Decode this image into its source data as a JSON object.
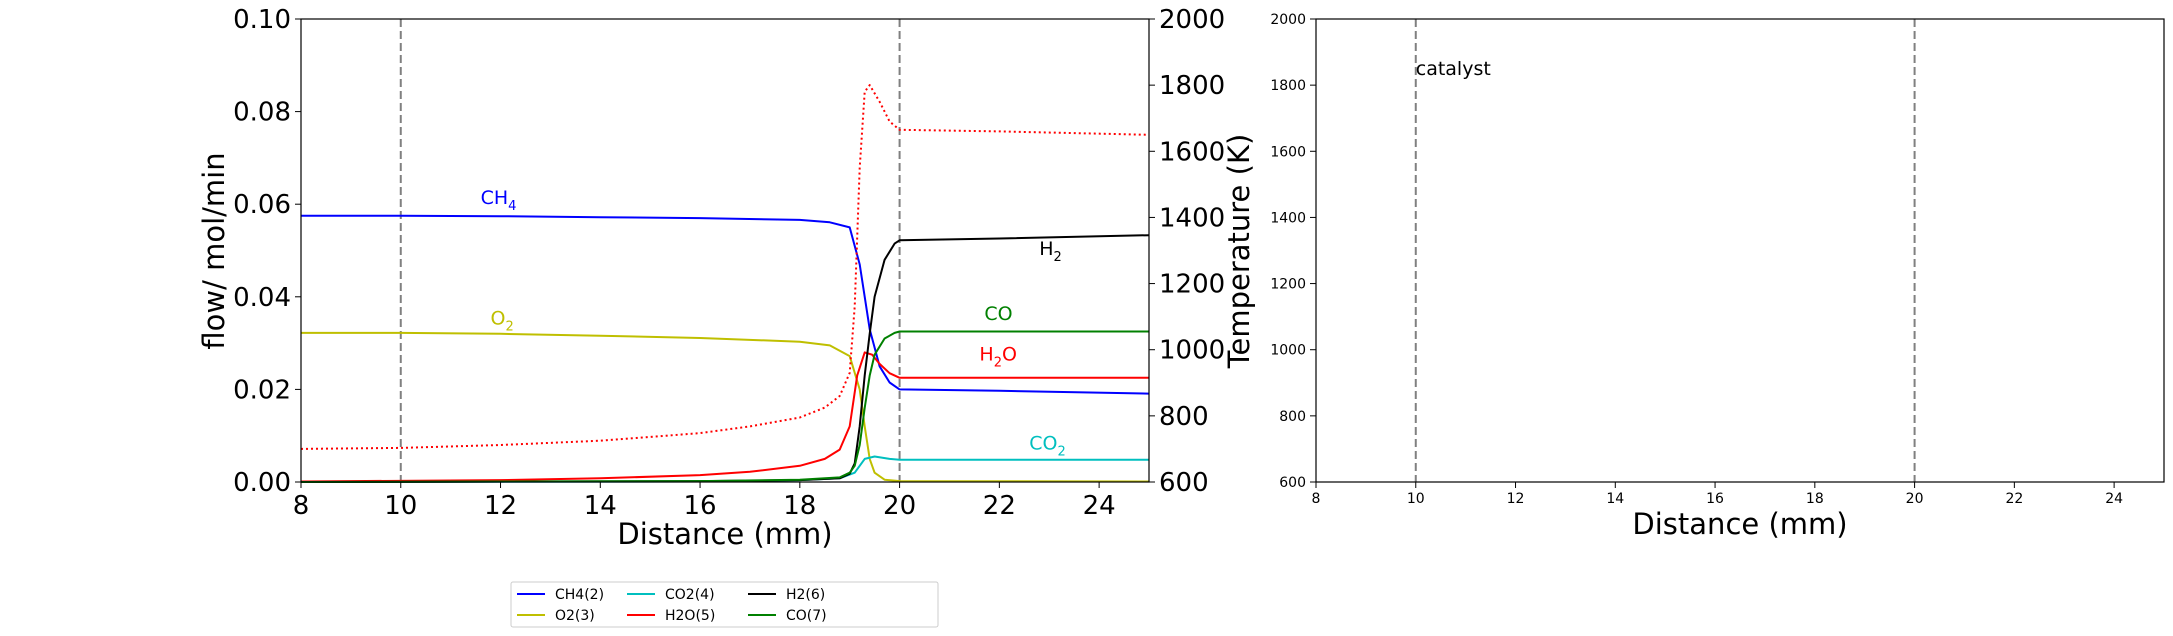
{
  "chart_data": [
    {
      "type": "line",
      "xlabel": "Distance (mm)",
      "ylabel": "flow/ mol/min",
      "y2label": "Temperature (K)",
      "xlim": [
        8,
        25
      ],
      "ylim": [
        0,
        0.1
      ],
      "y2lim": [
        600,
        2000
      ],
      "xticks": [
        "8",
        "10",
        "12",
        "14",
        "16",
        "18",
        "20",
        "22",
        "24"
      ],
      "yticks": [
        "0.00",
        "0.02",
        "0.04",
        "0.06",
        "0.08",
        "0.10"
      ],
      "y2ticks": [
        "600",
        "800",
        "1000",
        "1200",
        "1400",
        "1600",
        "1800",
        "2000"
      ],
      "vlines": [
        10,
        20
      ],
      "grid": false,
      "series": [
        {
          "name": "CH4(2)",
          "color": "#0000ff",
          "style": "solid",
          "x": [
            8,
            10,
            12,
            14,
            16,
            18,
            18.6,
            19.0,
            19.2,
            19.4,
            19.6,
            19.8,
            20,
            22,
            25
          ],
          "y": [
            0.0575,
            0.0575,
            0.0574,
            0.0572,
            0.057,
            0.0566,
            0.0561,
            0.055,
            0.047,
            0.033,
            0.025,
            0.0215,
            0.02,
            0.0197,
            0.0191
          ]
        },
        {
          "name": "O2(3)",
          "color": "#bfbf00",
          "style": "solid",
          "x": [
            8,
            10,
            12,
            14,
            16,
            18,
            18.6,
            19.0,
            19.2,
            19.3,
            19.4,
            19.5,
            19.7,
            20,
            25
          ],
          "y": [
            0.0322,
            0.0322,
            0.032,
            0.0316,
            0.0311,
            0.0303,
            0.0295,
            0.0272,
            0.02,
            0.012,
            0.005,
            0.002,
            0.0005,
            0.0002,
            0.0001
          ]
        },
        {
          "name": "CO2(4)",
          "color": "#00bfbf",
          "style": "solid",
          "x": [
            8,
            16,
            18,
            18.8,
            19.1,
            19.3,
            19.5,
            19.8,
            20,
            25
          ],
          "y": [
            0,
            0.0001,
            0.0004,
            0.0008,
            0.002,
            0.005,
            0.0055,
            0.005,
            0.0048,
            0.0048
          ]
        },
        {
          "name": "H2O(5)",
          "color": "#ff0000",
          "style": "solid",
          "x": [
            8,
            12,
            14,
            16,
            17,
            18,
            18.5,
            18.8,
            19.0,
            19.15,
            19.3,
            19.45,
            19.6,
            19.8,
            20,
            25
          ],
          "y": [
            0.0001,
            0.0004,
            0.0008,
            0.0015,
            0.0022,
            0.0035,
            0.005,
            0.007,
            0.012,
            0.023,
            0.028,
            0.0275,
            0.0255,
            0.0235,
            0.0225,
            0.0225
          ]
        },
        {
          "name": "H2(6)",
          "color": "#000000",
          "style": "solid",
          "x": [
            8,
            16,
            18,
            18.8,
            19.0,
            19.1,
            19.2,
            19.3,
            19.4,
            19.5,
            19.7,
            19.9,
            20,
            22,
            25
          ],
          "y": [
            0,
            0.0002,
            0.0004,
            0.0008,
            0.0018,
            0.004,
            0.012,
            0.023,
            0.032,
            0.04,
            0.048,
            0.0515,
            0.0522,
            0.0526,
            0.0533
          ]
        },
        {
          "name": "CO(7)",
          "color": "#008000",
          "style": "solid",
          "x": [
            8,
            16,
            18,
            18.8,
            19.0,
            19.1,
            19.2,
            19.3,
            19.4,
            19.5,
            19.7,
            19.9,
            20,
            25
          ],
          "y": [
            0,
            0.0002,
            0.0005,
            0.001,
            0.002,
            0.0035,
            0.008,
            0.016,
            0.023,
            0.0275,
            0.031,
            0.0322,
            0.0325,
            0.0325
          ]
        },
        {
          "name": "",
          "color": "#ff0000",
          "style": "dotted",
          "axis": "right",
          "x": [
            8,
            10,
            12,
            14,
            16,
            17,
            18,
            18.5,
            18.8,
            19.0,
            19.1,
            19.2,
            19.3,
            19.4,
            19.6,
            19.8,
            20,
            22,
            25
          ],
          "y": [
            700,
            703,
            712,
            725,
            748,
            768,
            795,
            825,
            860,
            930,
            1130,
            1550,
            1780,
            1800,
            1750,
            1690,
            1665,
            1660,
            1650
          ]
        }
      ],
      "annotations": [
        {
          "text": "CH",
          "sub": "4",
          "x": 11.6,
          "y": 0.06,
          "color": "#0000ff"
        },
        {
          "text": "O",
          "sub": "2",
          "x": 11.8,
          "y": 0.034,
          "color": "#bfbf00"
        },
        {
          "text": "H",
          "sub": "2",
          "x": 22.8,
          "y": 0.049,
          "color": "#000000"
        },
        {
          "text": "CO",
          "sub": "",
          "x": 21.7,
          "y": 0.035,
          "color": "#008000"
        },
        {
          "text": "H",
          "sub": "2",
          "tail": "O",
          "x": 21.6,
          "y": 0.0262,
          "color": "#ff0000"
        },
        {
          "text": "CO",
          "sub": "2",
          "x": 22.6,
          "y": 0.007,
          "color": "#00bfbf"
        }
      ]
    },
    {
      "type": "line",
      "xlabel": "Distance (mm)",
      "xlim": [
        8,
        25
      ],
      "ylim": [
        600,
        2000
      ],
      "xticks": [
        "8",
        "10",
        "12",
        "14",
        "16",
        "18",
        "20",
        "22",
        "24"
      ],
      "yticks": [
        "600",
        "800",
        "1000",
        "1200",
        "1400",
        "1600",
        "1800",
        "2000"
      ],
      "vlines": [
        10,
        20
      ],
      "grid": false,
      "series": [],
      "annotations": [
        {
          "text": "catalyst",
          "x": 10,
          "y": 1830,
          "color": "#000000"
        }
      ]
    }
  ],
  "legend": {
    "placement": "bottom-left",
    "entries": [
      {
        "label": "CH4(2)",
        "color": "#0000ff"
      },
      {
        "label": "O2(3)",
        "color": "#bfbf00"
      },
      {
        "label": "CO2(4)",
        "color": "#00bfbf"
      },
      {
        "label": "H2O(5)",
        "color": "#ff0000"
      },
      {
        "label": "H2(6)",
        "color": "#000000"
      },
      {
        "label": "CO(7)",
        "color": "#008000"
      }
    ]
  }
}
